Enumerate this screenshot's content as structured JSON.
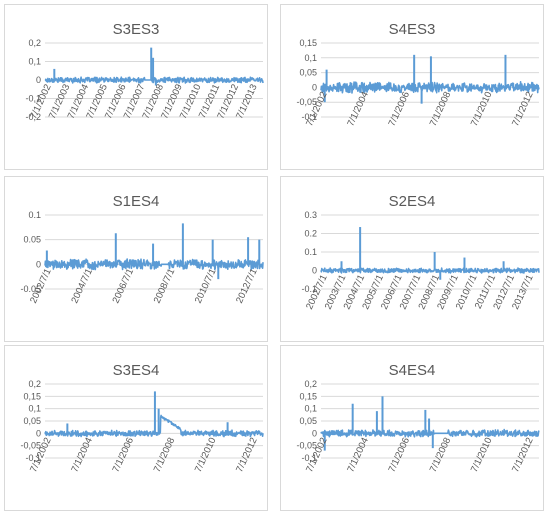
{
  "chart_data": [
    {
      "type": "line",
      "title": "S3ES3",
      "ylim": [
        -0.2,
        0.2
      ],
      "yticks": [
        "-0,2",
        "-0,1",
        "0",
        "0,1",
        "0,2"
      ],
      "ytick_values": [
        -0.2,
        -0.1,
        0,
        0.1,
        0.2
      ],
      "xticks": [
        "7/1/2002",
        "7/1/2003",
        "7/1/2004",
        "7/1/2005",
        "7/1/2006",
        "7/1/2007",
        "7/1/2008",
        "7/1/2009",
        "7/1/2010",
        "7/1/2011",
        "7/1/2012",
        "7/1/2013"
      ],
      "x_start": 2002.5,
      "x_end": 2014.2,
      "noise": 0.012,
      "series": [
        {
          "values": [
            0.06,
            0.04,
            0.05,
            0.035,
            0.04,
            0.035,
            0.175,
            -0.03,
            0.04,
            0.035,
            0.03,
            0.03,
            -0.04,
            -0.03,
            -0.025
          ]
        }
      ],
      "spikes": [
        [
          2003.0,
          0.06
        ],
        [
          2008.2,
          0.175
        ],
        [
          2008.3,
          0.12
        ],
        [
          2008.45,
          -0.03
        ]
      ],
      "gaps": [
        [
          2007.85,
          2008.15
        ]
      ],
      "grid": true
    },
    {
      "type": "line",
      "title": "S4ES3",
      "ylim": [
        -0.1,
        0.15
      ],
      "yticks": [
        "-0,1",
        "-0,05",
        "0",
        "0,05",
        "0,1",
        "0,15"
      ],
      "ytick_values": [
        -0.1,
        -0.05,
        0,
        0.05,
        0.1,
        0.15
      ],
      "xticks": [
        "7/1/2002",
        "7/1/2004",
        "7/1/2006",
        "7/1/2008",
        "7/1/2010",
        "7/1/2012"
      ],
      "x_start": 2002.5,
      "x_end": 2014.2,
      "noise": 0.014,
      "series": [
        {
          "values": [
            0.06,
            0.11,
            0.105,
            0.11,
            -0.05,
            -0.055,
            0.04,
            -0.035
          ]
        }
      ],
      "spikes": [
        [
          2002.8,
          0.06
        ],
        [
          2007.5,
          0.11
        ],
        [
          2008.4,
          0.105
        ],
        [
          2012.4,
          0.11
        ],
        [
          2002.7,
          -0.05
        ],
        [
          2007.9,
          -0.055
        ]
      ],
      "gaps": [],
      "grid": true
    },
    {
      "type": "line",
      "title": "S1ES4",
      "ylim": [
        -0.05,
        0.1
      ],
      "yticks": [
        "-0.05",
        "0",
        "0.05",
        "0.1"
      ],
      "ytick_values": [
        -0.05,
        0,
        0.05,
        0.1
      ],
      "xticks": [
        "2002/7/1",
        "2004/7/1",
        "2006/7/1",
        "2008/7/1",
        "2010/7/1",
        "2012/7/1"
      ],
      "x_start": 2002.5,
      "x_end": 2014.2,
      "noise": 0.008,
      "series": [
        {
          "values": [
            0.028,
            0.063,
            0.042,
            0.083,
            0.05,
            0.055,
            0.05,
            -0.03,
            -0.025
          ]
        }
      ],
      "spikes": [
        [
          2002.6,
          0.028
        ],
        [
          2006.3,
          0.063
        ],
        [
          2008.3,
          0.042
        ],
        [
          2009.9,
          0.083
        ],
        [
          2011.5,
          0.05
        ],
        [
          2013.4,
          0.055
        ],
        [
          2014.0,
          0.05
        ],
        [
          2011.8,
          -0.03
        ]
      ],
      "gaps": [
        [
          2008.75,
          2009.1
        ]
      ],
      "grid": true
    },
    {
      "type": "line",
      "title": "S2ES4",
      "ylim": [
        -0.1,
        0.3
      ],
      "yticks": [
        "-0.1",
        "0",
        "0.1",
        "0.2",
        "0.3"
      ],
      "ytick_values": [
        -0.1,
        0,
        0.1,
        0.2,
        0.3
      ],
      "xticks": [
        "2002/7/1",
        "2003/7/1",
        "2004/7/1",
        "2005/7/1",
        "2006/7/1",
        "2007/7/1",
        "2008/7/1",
        "2009/7/1",
        "2010/7/1",
        "2011/7/1",
        "2012/7/1",
        "2013/7/1"
      ],
      "x_start": 2002.5,
      "x_end": 2014.2,
      "noise": 0.01,
      "series": [
        {
          "values": [
            0.235,
            0.1,
            0.05,
            0.07,
            0.05,
            -0.05,
            -0.03
          ]
        }
      ],
      "spikes": [
        [
          2004.6,
          0.235
        ],
        [
          2008.6,
          0.1
        ],
        [
          2003.6,
          0.05
        ],
        [
          2010.2,
          0.07
        ],
        [
          2012.3,
          0.05
        ],
        [
          2008.9,
          -0.05
        ]
      ],
      "gaps": [],
      "grid": true
    },
    {
      "type": "line",
      "title": "S3ES4",
      "ylim": [
        -0.1,
        0.2
      ],
      "yticks": [
        "-0,1",
        "-0,05",
        "0",
        "0,05",
        "0,1",
        "0,15",
        "0,2"
      ],
      "ytick_values": [
        -0.1,
        -0.05,
        0,
        0.05,
        0.1,
        0.15,
        0.2
      ],
      "xticks": [
        "7/1/2002",
        "7/1/2004",
        "7/1/2006",
        "7/1/2008",
        "7/1/2010",
        "7/1/2012"
      ],
      "x_start": 2002.5,
      "x_end": 2014.2,
      "noise": 0.01,
      "series": [
        {
          "values": [
            0.17,
            0.1,
            0.04,
            0.045,
            0.04,
            -0.02
          ]
        }
      ],
      "spikes": [
        [
          2008.4,
          0.17
        ],
        [
          2008.6,
          0.1
        ],
        [
          2003.7,
          0.04
        ],
        [
          2012.3,
          0.045
        ]
      ],
      "gaps": [],
      "ramp": [
        2008.7,
        0.07,
        2009.8,
        0.015
      ],
      "grid": true
    },
    {
      "type": "line",
      "title": "S4ES4",
      "ylim": [
        -0.1,
        0.2
      ],
      "yticks": [
        "-0,1",
        "-0,05",
        "0",
        "0,05",
        "0,1",
        "0,15",
        "0,2"
      ],
      "ytick_values": [
        -0.1,
        -0.05,
        0,
        0.05,
        0.1,
        0.15,
        0.2
      ],
      "xticks": [
        "7/1/2002",
        "7/1/2004",
        "7/1/2006",
        "7/1/2008",
        "7/1/2010",
        "7/1/2012"
      ],
      "x_start": 2002.5,
      "x_end": 2014.2,
      "noise": 0.011,
      "series": [
        {
          "values": [
            0.12,
            0.15,
            0.09,
            0.095,
            0.06,
            -0.07,
            -0.06
          ]
        }
      ],
      "spikes": [
        [
          2004.2,
          0.12
        ],
        [
          2005.8,
          0.15
        ],
        [
          2005.5,
          0.09
        ],
        [
          2008.1,
          0.095
        ],
        [
          2008.3,
          0.06
        ],
        [
          2002.7,
          -0.07
        ],
        [
          2008.5,
          -0.06
        ]
      ],
      "gaps": [
        [
          2008.6,
          2009.3
        ]
      ],
      "grid": true
    }
  ]
}
